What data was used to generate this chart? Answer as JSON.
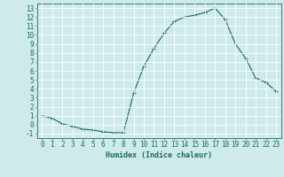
{
  "x": [
    0,
    1,
    2,
    3,
    4,
    5,
    6,
    7,
    8,
    9,
    10,
    11,
    12,
    13,
    14,
    15,
    16,
    17,
    18,
    19,
    20,
    21,
    22,
    23
  ],
  "y": [
    1.0,
    0.7,
    0.1,
    -0.2,
    -0.5,
    -0.6,
    -0.8,
    -0.9,
    -0.9,
    3.5,
    6.5,
    8.5,
    10.2,
    11.5,
    12.0,
    12.2,
    12.5,
    13.0,
    11.7,
    9.0,
    7.4,
    5.2,
    4.7,
    3.7
  ],
  "line_color": "#1a6b5a",
  "marker": "+",
  "markersize": 3,
  "linewidth": 0.8,
  "xlabel": "Humidex (Indice chaleur)",
  "xlabel_fontsize": 6,
  "xlim": [
    -0.5,
    23.5
  ],
  "ylim": [
    -1.5,
    13.5
  ],
  "yticks": [
    -1,
    0,
    1,
    2,
    3,
    4,
    5,
    6,
    7,
    8,
    9,
    10,
    11,
    12,
    13
  ],
  "xticks": [
    0,
    1,
    2,
    3,
    4,
    5,
    6,
    7,
    8,
    9,
    10,
    11,
    12,
    13,
    14,
    15,
    16,
    17,
    18,
    19,
    20,
    21,
    22,
    23
  ],
  "background_color": "#ceeaea",
  "grid_color": "#b8d8d8",
  "tick_color": "#1a6b5a",
  "tick_fontsize": 5.5,
  "spine_color": "#1a6b5a"
}
